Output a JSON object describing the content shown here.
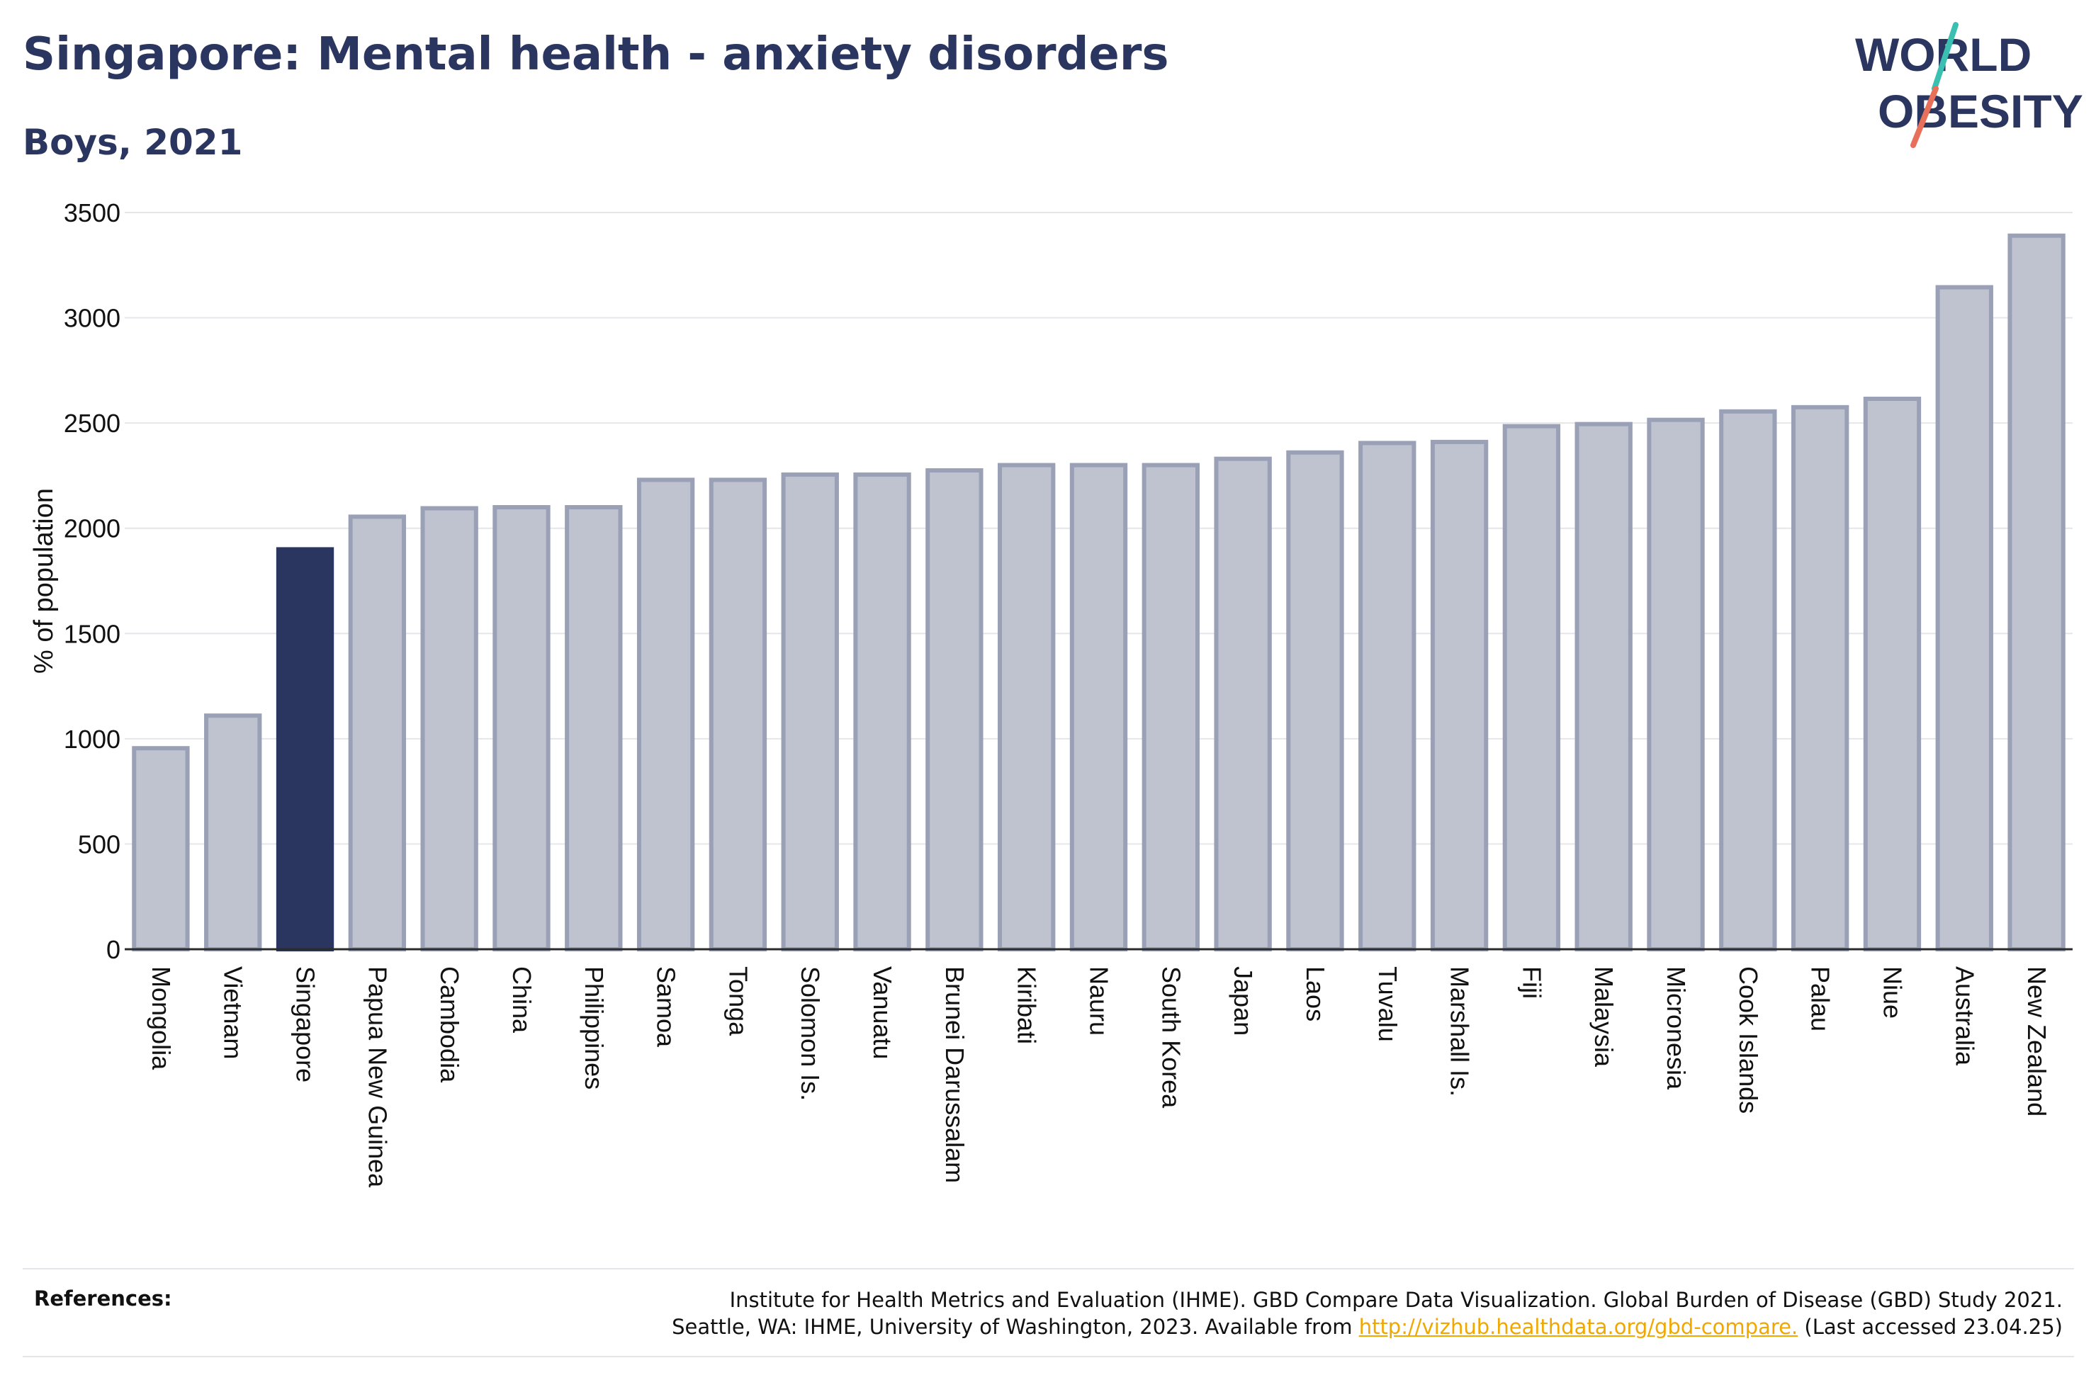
{
  "header": {
    "title": "Singapore: Mental health - anxiety disorders",
    "subtitle": "Boys, 2021"
  },
  "logo": {
    "line1": "WORLD",
    "line2": "OBESITY"
  },
  "colors": {
    "highlight": "#2b3660",
    "bar_fill": "#bfc2cf",
    "bar_stroke": "#9aa0b6",
    "grid": "#e6e6ea",
    "logo_teal": "#3bbfb0",
    "logo_coral": "#e8705a",
    "link": "#f0a800"
  },
  "chart_data": {
    "type": "bar",
    "ylabel": "% of population",
    "ylim": [
      0,
      3500
    ],
    "yticks": [
      0,
      500,
      1000,
      1500,
      2000,
      2500,
      3000,
      3500
    ],
    "grid": true,
    "highlight": "Singapore",
    "categories": [
      "Mongolia",
      "Vietnam",
      "Singapore",
      "Papua New Guinea",
      "Cambodia",
      "China",
      "Philippines",
      "Samoa",
      "Tonga",
      "Solomon Is.",
      "Vanuatu",
      "Brunei Darussalam",
      "Kiribati",
      "Nauru",
      "South Korea",
      "Japan",
      "Laos",
      "Tuvalu",
      "Marshall Is.",
      "Fiji",
      "Malaysia",
      "Micronesia",
      "Cook Islands",
      "Palau",
      "Niue",
      "Australia",
      "New Zealand"
    ],
    "values": [
      955,
      1110,
      1900,
      2055,
      2095,
      2100,
      2100,
      2230,
      2230,
      2255,
      2255,
      2275,
      2300,
      2300,
      2300,
      2330,
      2360,
      2405,
      2410,
      2485,
      2495,
      2515,
      2555,
      2575,
      2615,
      3145,
      3390
    ]
  },
  "references": {
    "label": "References:",
    "line1": "Institute for Health Metrics and Evaluation (IHME). GBD Compare Data Visualization. Global Burden of Disease (GBD) Study 2021.",
    "line2_prefix": "Seattle, WA: IHME, University of Washington, 2023. Available from ",
    "link_text": "http://vizhub.healthdata.org/gbd-compare.",
    "line2_suffix": " (Last accessed 23.04.25)"
  }
}
